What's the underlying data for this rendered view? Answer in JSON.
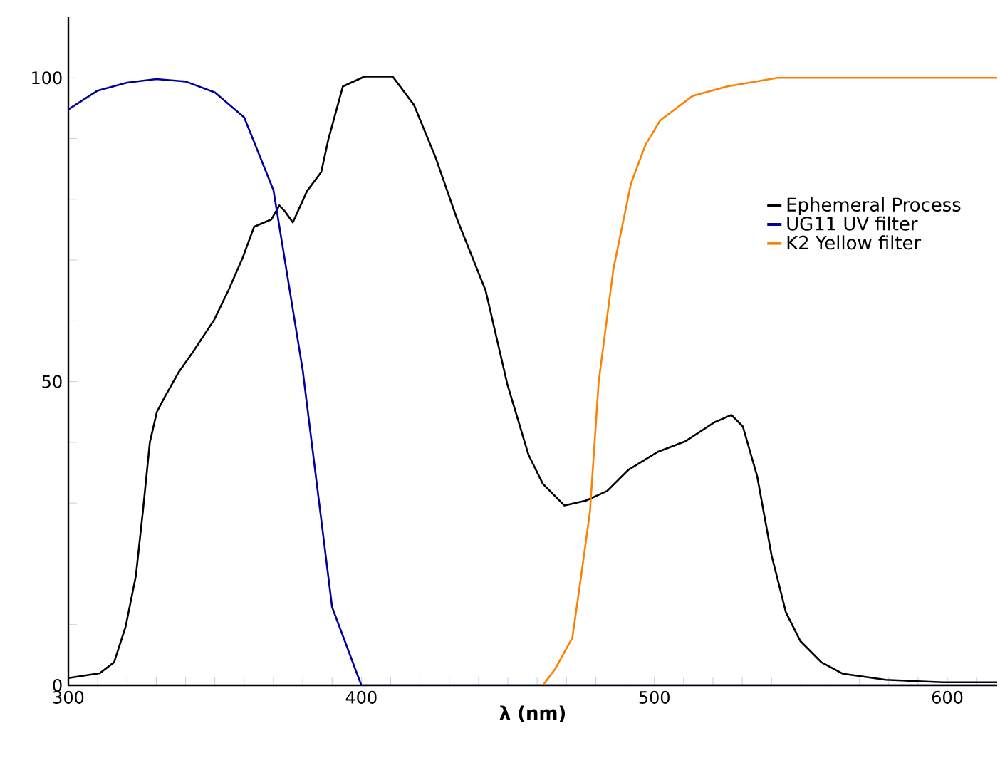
{
  "chart_data": {
    "type": "line",
    "xlabel": "λ (nm)",
    "xlim": [
      300,
      617
    ],
    "ylim": [
      0,
      110
    ],
    "xticks": [
      300,
      {
        "value": 310,
        "label": null
      },
      {
        "value": 320,
        "label": null
      },
      {
        "value": 330,
        "label": null
      },
      {
        "value": 340,
        "label": null
      },
      {
        "value": 350,
        "label": null
      },
      {
        "value": 360,
        "label": null
      },
      {
        "value": 370,
        "label": null
      },
      {
        "value": 380,
        "label": null
      },
      {
        "value": 390,
        "label": null
      },
      400,
      {
        "value": 410,
        "label": null
      },
      {
        "value": 420,
        "label": null
      },
      {
        "value": 430,
        "label": null
      },
      {
        "value": 440,
        "label": null
      },
      {
        "value": 450,
        "label": null
      },
      {
        "value": 460,
        "label": null
      },
      {
        "value": 470,
        "label": null
      },
      {
        "value": 480,
        "label": null
      },
      {
        "value": 490,
        "label": null
      },
      500,
      {
        "value": 510,
        "label": null
      },
      {
        "value": 520,
        "label": null
      },
      {
        "value": 530,
        "label": null
      },
      {
        "value": 540,
        "label": null
      },
      {
        "value": 550,
        "label": null
      },
      {
        "value": 560,
        "label": null
      },
      {
        "value": 570,
        "label": null
      },
      {
        "value": 580,
        "label": null
      },
      {
        "value": 590,
        "label": null
      },
      600,
      {
        "value": 610,
        "label": null
      }
    ],
    "yticks": [
      0,
      {
        "value": 10,
        "label": null
      },
      {
        "value": 20,
        "label": null
      },
      {
        "value": 30,
        "label": null
      },
      {
        "value": 40,
        "label": null
      },
      50,
      {
        "value": 60,
        "label": null
      },
      {
        "value": 70,
        "label": null
      },
      {
        "value": 80,
        "label": null
      },
      {
        "value": 90,
        "label": null
      },
      100
    ],
    "legend": "right",
    "grid": false,
    "marker": "none",
    "line_style": "solid",
    "series": [
      {
        "name": "Ephemeral Process",
        "color": "#000000",
        "x": [
          300,
          310.7,
          315.6,
          319.5,
          323,
          325.4,
          327.8,
          330.2,
          332.7,
          337.6,
          342.4,
          349.8,
          354.6,
          359.5,
          363.4,
          369.3,
          372,
          374.1,
          376.6,
          381.5,
          386.3,
          388.8,
          393.7,
          401,
          410.7,
          418,
          425.4,
          432.7,
          442.4,
          449.8,
          457,
          461.9,
          469.3,
          476.6,
          483.9,
          491.2,
          501,
          510.7,
          520.5,
          526.3,
          530.2,
          535.1,
          540,
          544.9,
          549.8,
          557,
          564.4,
          579,
          598.5,
          617
        ],
        "values": [
          1.2,
          2,
          3.8,
          9.6,
          17.9,
          28.5,
          40,
          45,
          47.3,
          51.5,
          54.8,
          60.2,
          65,
          70.4,
          75.5,
          76.7,
          79,
          77.9,
          76.2,
          81.4,
          84.5,
          90,
          98.6,
          100.2,
          100.2,
          95.5,
          86.8,
          76.7,
          65,
          49.6,
          38,
          33.2,
          29.6,
          30.4,
          32,
          35.5,
          38.4,
          40.2,
          43.3,
          44.5,
          42.6,
          34.4,
          21.4,
          12,
          7.3,
          3.8,
          1.9,
          0.9,
          0.5,
          0.5
        ]
      },
      {
        "name": "UG11 UV filter",
        "color": "#0000a0",
        "x": [
          300,
          310,
          320,
          330,
          340,
          350,
          360,
          370,
          380,
          390,
          400,
          617
        ],
        "values": [
          94.8,
          97.9,
          99.2,
          99.8,
          99.4,
          97.6,
          93.5,
          81.5,
          51.8,
          12.9,
          0,
          0
        ]
      },
      {
        "name": "K2 Yellow filter",
        "color": "#ff8000",
        "x": [
          462,
          466,
          472,
          475,
          478,
          481,
          486,
          492,
          497,
          502,
          513,
          525,
          542,
          617
        ],
        "values": [
          0,
          2.6,
          7.8,
          18,
          28.5,
          50,
          68.5,
          82.6,
          89,
          93,
          97,
          98.6,
          100,
          100
        ]
      }
    ]
  }
}
